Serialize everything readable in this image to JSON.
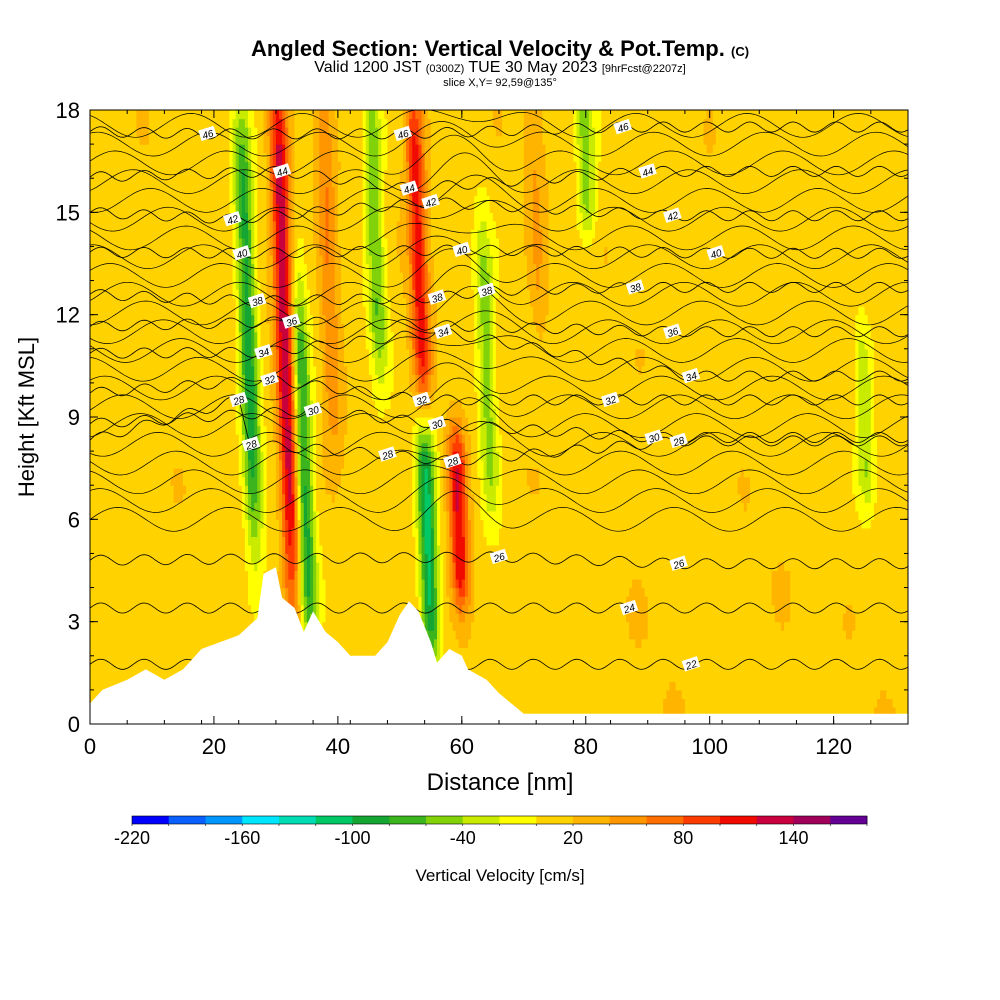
{
  "title": {
    "main": "Angled Section: Vertical Velocity & Pot.Temp.",
    "main_units": "(C)",
    "valid_prefix": "Valid 1200 JST",
    "valid_utc": "(0300Z)",
    "valid_date": "TUE 30 May 2023",
    "forecast": "[9hrFcst@2207z]",
    "slice": "slice X,Y= 92,59@135°"
  },
  "colors": {
    "background": "#ffffff",
    "terrain": "#ffffff",
    "contour": "#000000"
  },
  "chart_data": {
    "type": "heatmap",
    "xlabel": "Distance [nm]",
    "ylabel": "Height [Kft MSL]",
    "xlim": [
      0,
      132
    ],
    "ylim": [
      0,
      18
    ],
    "x_ticks": [
      "0",
      "20",
      "40",
      "60",
      "80",
      "100",
      "120"
    ],
    "y_ticks": [
      "0",
      "3",
      "6",
      "9",
      "12",
      "15",
      "18"
    ],
    "colorbar": {
      "label": "Vertical Velocity [cm/s]",
      "tick_labels": [
        "-220",
        "-160",
        "-100",
        "-40",
        "20",
        "80",
        "140"
      ],
      "levels": [
        -220,
        -200,
        -180,
        -160,
        -140,
        -120,
        -100,
        -80,
        -60,
        -40,
        -20,
        0,
        20,
        40,
        60,
        80,
        100,
        120,
        140,
        160
      ],
      "colors": [
        "#0000ff",
        "#0a5fff",
        "#0096ff",
        "#00e6ff",
        "#00dcb4",
        "#00c864",
        "#14a532",
        "#3cb41e",
        "#82d20a",
        "#c8eb00",
        "#ffff00",
        "#ffd200",
        "#ffb400",
        "#ff9600",
        "#ff6e00",
        "#ff3c00",
        "#f00a00",
        "#c8003c",
        "#a0005a",
        "#640096"
      ]
    },
    "updrafts": [
      {
        "x": 31.5,
        "y_range": [
          4.5,
          18
        ],
        "peak": 140
      },
      {
        "x": 38.5,
        "y_range": [
          9,
          18
        ],
        "peak": 60
      },
      {
        "x": 53,
        "y_range": [
          9.5,
          18
        ],
        "peak": 110
      },
      {
        "x": 59.5,
        "y_range": [
          4,
          8
        ],
        "peak": 120
      },
      {
        "x": 72,
        "y_range": [
          12,
          18
        ],
        "peak": 40
      }
    ],
    "downdrafts": [
      {
        "x": 25.5,
        "y_range": [
          6,
          17
        ],
        "min": -90
      },
      {
        "x": 34.5,
        "y_range": [
          3,
          12
        ],
        "min": -90
      },
      {
        "x": 46,
        "y_range": [
          11,
          18
        ],
        "min": -60
      },
      {
        "x": 54.5,
        "y_range": [
          2.5,
          8.5
        ],
        "min": -110
      },
      {
        "x": 64,
        "y_range": [
          7,
          14
        ],
        "min": -50
      },
      {
        "x": 80,
        "y_range": [
          15,
          18
        ],
        "min": -50
      },
      {
        "x": 125,
        "y_range": [
          7,
          11
        ],
        "min": -40
      }
    ],
    "terrain_kft": [
      [
        0,
        0.6
      ],
      [
        2,
        1.0
      ],
      [
        6,
        1.3
      ],
      [
        9,
        1.6
      ],
      [
        12,
        1.3
      ],
      [
        15,
        1.6
      ],
      [
        18,
        2.2
      ],
      [
        24,
        2.6
      ],
      [
        27,
        3.1
      ],
      [
        28,
        4.4
      ],
      [
        30,
        4.6
      ],
      [
        31,
        3.7
      ],
      [
        33,
        3.4
      ],
      [
        34.5,
        2.7
      ],
      [
        36,
        3.3
      ],
      [
        38,
        2.7
      ],
      [
        40,
        2.4
      ],
      [
        42,
        2.0
      ],
      [
        46,
        2.0
      ],
      [
        48,
        2.4
      ],
      [
        50,
        3.2
      ],
      [
        51.5,
        3.6
      ],
      [
        53,
        3.3
      ],
      [
        55,
        2.4
      ],
      [
        56,
        1.8
      ],
      [
        58,
        2.2
      ],
      [
        60,
        2.0
      ],
      [
        61,
        1.6
      ],
      [
        64,
        1.3
      ],
      [
        66,
        0.9
      ],
      [
        68,
        0.6
      ],
      [
        70,
        0.3
      ],
      [
        132,
        0.3
      ]
    ],
    "theta_contours": [
      {
        "level": "22",
        "label_at": [
          97,
          1.75
        ]
      },
      {
        "level": "24",
        "label_at": [
          87,
          3.4
        ]
      },
      {
        "level": "26",
        "label_at": [
          66,
          4.9
        ]
      },
      {
        "level": "26",
        "label_at": [
          95,
          4.7
        ]
      },
      {
        "level": "28",
        "label_at": [
          48,
          7.9
        ]
      },
      {
        "level": "28",
        "label_at": [
          58.5,
          7.7
        ]
      },
      {
        "level": "28",
        "label_at": [
          26,
          8.2
        ]
      },
      {
        "level": "28",
        "label_at": [
          95,
          8.3
        ]
      },
      {
        "level": "28",
        "label_at": [
          24,
          9.5
        ]
      },
      {
        "level": "30",
        "label_at": [
          56,
          8.8
        ]
      },
      {
        "level": "30",
        "label_at": [
          91,
          8.4
        ]
      },
      {
        "level": "30",
        "label_at": [
          36,
          9.2
        ]
      },
      {
        "level": "32",
        "label_at": [
          29,
          10.1
        ]
      },
      {
        "level": "32",
        "label_at": [
          53.5,
          9.5
        ]
      },
      {
        "level": "32",
        "label_at": [
          84,
          9.5
        ]
      },
      {
        "level": "34",
        "label_at": [
          28,
          10.9
        ]
      },
      {
        "level": "34",
        "label_at": [
          57,
          11.5
        ]
      },
      {
        "level": "34",
        "label_at": [
          97,
          10.2
        ]
      },
      {
        "level": "36",
        "label_at": [
          32.5,
          11.8
        ]
      },
      {
        "level": "36",
        "label_at": [
          94,
          11.5
        ]
      },
      {
        "level": "38",
        "label_at": [
          27,
          12.4
        ]
      },
      {
        "level": "38",
        "label_at": [
          56,
          12.5
        ]
      },
      {
        "level": "38",
        "label_at": [
          64,
          12.7
        ]
      },
      {
        "level": "38",
        "label_at": [
          88,
          12.8
        ]
      },
      {
        "level": "40",
        "label_at": [
          24.5,
          13.8
        ]
      },
      {
        "level": "40",
        "label_at": [
          60,
          13.9
        ]
      },
      {
        "level": "40",
        "label_at": [
          101,
          13.8
        ]
      },
      {
        "level": "42",
        "label_at": [
          23,
          14.8
        ]
      },
      {
        "level": "42",
        "label_at": [
          55,
          15.3
        ]
      },
      {
        "level": "42",
        "label_at": [
          94,
          14.9
        ]
      },
      {
        "level": "44",
        "label_at": [
          31,
          16.2
        ]
      },
      {
        "level": "44",
        "label_at": [
          51.5,
          15.7
        ]
      },
      {
        "level": "44",
        "label_at": [
          90,
          16.2
        ]
      },
      {
        "level": "46",
        "label_at": [
          19,
          17.3
        ]
      },
      {
        "level": "46",
        "label_at": [
          50.5,
          17.3
        ]
      },
      {
        "level": "46",
        "label_at": [
          86,
          17.5
        ]
      }
    ]
  }
}
